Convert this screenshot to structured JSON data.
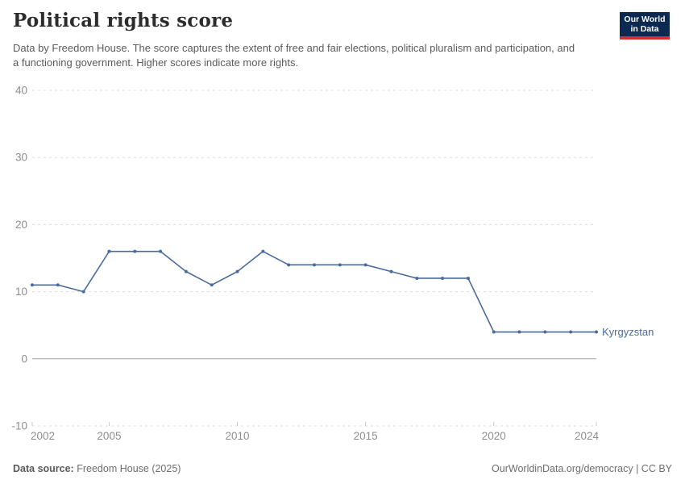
{
  "header": {
    "title": "Political rights score",
    "subtitle": "Data by Freedom House. The score captures the extent of free and fair elections, political pluralism and participation, and a functioning government. Higher scores indicate more rights.",
    "logo": {
      "line1": "Our World",
      "line2": "in Data"
    }
  },
  "footer": {
    "source_label": "Data source:",
    "source_value": "Freedom House (2025)",
    "link": "OurWorldinData.org/democracy",
    "separator": "|",
    "license": "CC BY"
  },
  "colors": {
    "line": "#4C6A9C",
    "grid": "#dddddd",
    "zero_line": "#a3a3a3",
    "tick_text": "#8e8e8e",
    "logo_bg": "#0c2a51",
    "logo_red": "#cd322b",
    "title_text": "#2c2c2c",
    "subtitle_text": "#5b5b5b"
  },
  "chart_data": {
    "type": "line",
    "title": "Political rights score",
    "xlabel": "",
    "ylabel": "",
    "x": [
      2002,
      2003,
      2004,
      2005,
      2006,
      2007,
      2008,
      2009,
      2010,
      2011,
      2012,
      2013,
      2014,
      2015,
      2016,
      2017,
      2018,
      2019,
      2020,
      2021,
      2022,
      2023,
      2024
    ],
    "series": [
      {
        "name": "Kyrgyzstan",
        "color": "#4C6A9C",
        "values": [
          11,
          11,
          10,
          16,
          16,
          16,
          13,
          11,
          13,
          16,
          14,
          14,
          14,
          14,
          13,
          12,
          12,
          12,
          4,
          4,
          4,
          4,
          4
        ]
      }
    ],
    "xlim": [
      2002,
      2024
    ],
    "ylim": [
      -10,
      40
    ],
    "y_ticks": [
      -10,
      0,
      10,
      20,
      30,
      40
    ],
    "x_ticks": [
      2002,
      2005,
      2010,
      2015,
      2020,
      2024
    ],
    "grid": "horizontal-dashed",
    "legend_position": "line-end-label"
  }
}
